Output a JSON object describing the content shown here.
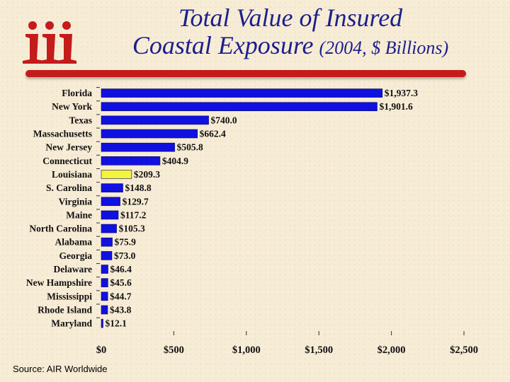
{
  "title": {
    "line1": "Total Value of Insured",
    "line2": "Coastal Exposure",
    "line2_suffix": "(2004, $ Billions)"
  },
  "logo": {
    "icon": "iii-logo-icon",
    "color": "#c41b1b"
  },
  "source": "Source: AIR Worldwide",
  "colors": {
    "bar": "#1010e0",
    "highlight": "#f4f43a",
    "background": "#f7ecd6",
    "accent": "#c41b1b"
  },
  "chart_data": {
    "type": "bar",
    "orientation": "horizontal",
    "categories": [
      "Florida",
      "New York",
      "Texas",
      "Massachusetts",
      "New Jersey",
      "Connecticut",
      "Louisiana",
      "S. Carolina",
      "Virginia",
      "Maine",
      "North Carolina",
      "Alabama",
      "Georgia",
      "Delaware",
      "New Hampshire",
      "Mississippi",
      "Rhode Island",
      "Maryland"
    ],
    "values": [
      1937.3,
      1901.6,
      740.0,
      662.4,
      505.8,
      404.9,
      209.3,
      148.8,
      129.7,
      117.2,
      105.3,
      75.9,
      73.0,
      46.4,
      45.6,
      44.7,
      43.8,
      12.1
    ],
    "value_labels": [
      "$1,937.3",
      "$1,901.6",
      "$740.0",
      "$662.4",
      "$505.8",
      "$404.9",
      "$209.3",
      "$148.8",
      "$129.7",
      "$117.2",
      "$105.3",
      "$75.9",
      "$73.0",
      "$46.4",
      "$45.6",
      "$44.7",
      "$43.8",
      "$12.1"
    ],
    "highlight": "Louisiana",
    "xlim": [
      0,
      2500
    ],
    "xticks": [
      0,
      500,
      1000,
      1500,
      2000,
      2500
    ],
    "xtick_labels": [
      "$0",
      "$500",
      "$1,000",
      "$1,500",
      "$2,000",
      "$2,500"
    ],
    "grid": false
  }
}
